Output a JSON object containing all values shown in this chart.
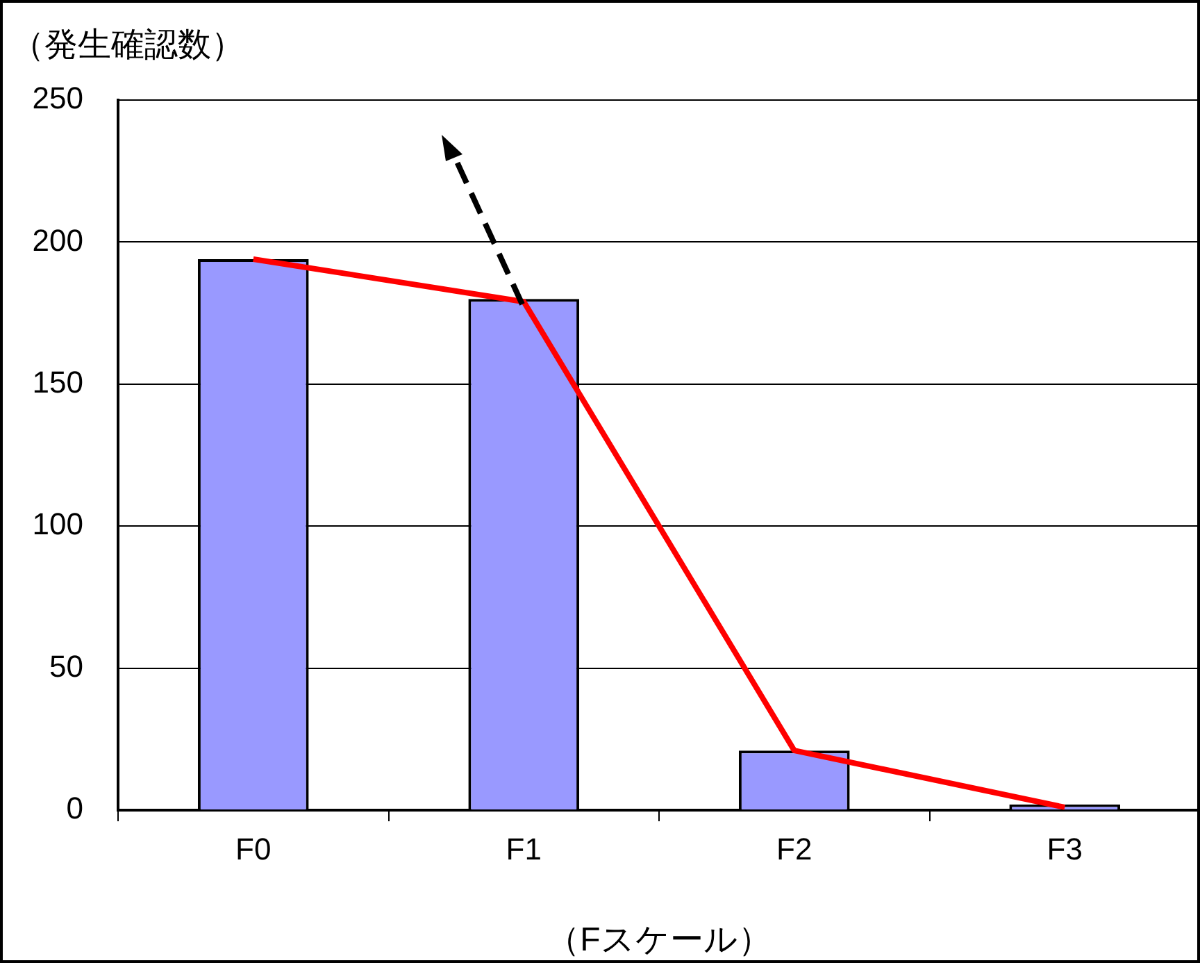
{
  "chart_data": {
    "type": "bar",
    "xlabel": "（Fスケール）",
    "ylabel": "（発生確認数）",
    "categories": [
      "F0",
      "F1",
      "F2",
      "F3"
    ],
    "series": [
      {
        "color": "#9999ff",
        "values": [
          194,
          180,
          21,
          2
        ]
      },
      {
        "type": "line",
        "color": "#ff0000",
        "values": [
          194,
          179,
          21,
          1
        ]
      }
    ],
    "ylim": [
      0,
      250
    ],
    "yticks": [
      0,
      50,
      100,
      150,
      200,
      250
    ],
    "grid": "y",
    "legend": false,
    "marker": "none",
    "line_style": "solid"
  }
}
